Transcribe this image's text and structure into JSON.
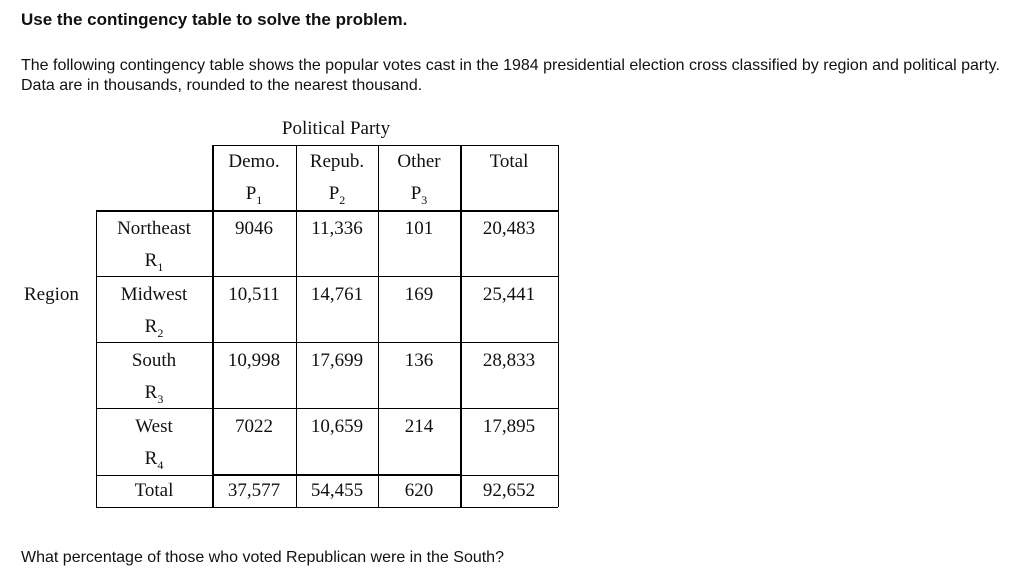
{
  "heading": "Use the contingency table to solve the problem.",
  "intro": "The following contingency table shows the popular votes cast in the 1984 presidential election cross classified by region and political party. Data are in thousands, rounded to the nearest thousand.",
  "table": {
    "party_title": "Political Party",
    "region_title": "Region",
    "columns": [
      {
        "label": "Demo.",
        "sym": "P",
        "sub": "1"
      },
      {
        "label": "Repub.",
        "sym": "P",
        "sub": "2"
      },
      {
        "label": "Other",
        "sym": "P",
        "sub": "3"
      },
      {
        "label": "Total",
        "sym": "",
        "sub": ""
      }
    ],
    "rows": [
      {
        "label": "Northeast",
        "sym": "R",
        "sub": "1",
        "values": [
          "9046",
          "11,336",
          "101",
          "20,483"
        ]
      },
      {
        "label": "Midwest",
        "sym": "R",
        "sub": "2",
        "values": [
          "10,511",
          "14,761",
          "169",
          "25,441"
        ]
      },
      {
        "label": "South",
        "sym": "R",
        "sub": "3",
        "values": [
          "10,998",
          "17,699",
          "136",
          "28,833"
        ]
      },
      {
        "label": "West",
        "sym": "R",
        "sub": "4",
        "values": [
          "7022",
          "10,659",
          "214",
          "17,895"
        ]
      }
    ],
    "total_row": {
      "label": "Total",
      "values": [
        "37,577",
        "54,455",
        "620",
        "92,652"
      ]
    }
  },
  "question": "What percentage of those who voted Republican were in the South?"
}
